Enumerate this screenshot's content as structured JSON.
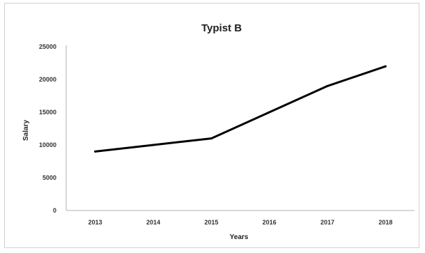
{
  "chart_data": {
    "type": "line",
    "title": "Typist B",
    "xlabel": "Years",
    "ylabel": "Salary",
    "categories": [
      "2013",
      "2014",
      "2015",
      "2016",
      "2017",
      "2018"
    ],
    "series": [
      {
        "values": [
          9000,
          10000,
          11000,
          15000,
          19000,
          22000
        ],
        "color": "#000000"
      }
    ],
    "ylim": [
      0,
      25000
    ],
    "yticks": [
      "0",
      "5000",
      "10000",
      "15000",
      "20000",
      "25000"
    ],
    "grid": false,
    "legend": "none"
  }
}
